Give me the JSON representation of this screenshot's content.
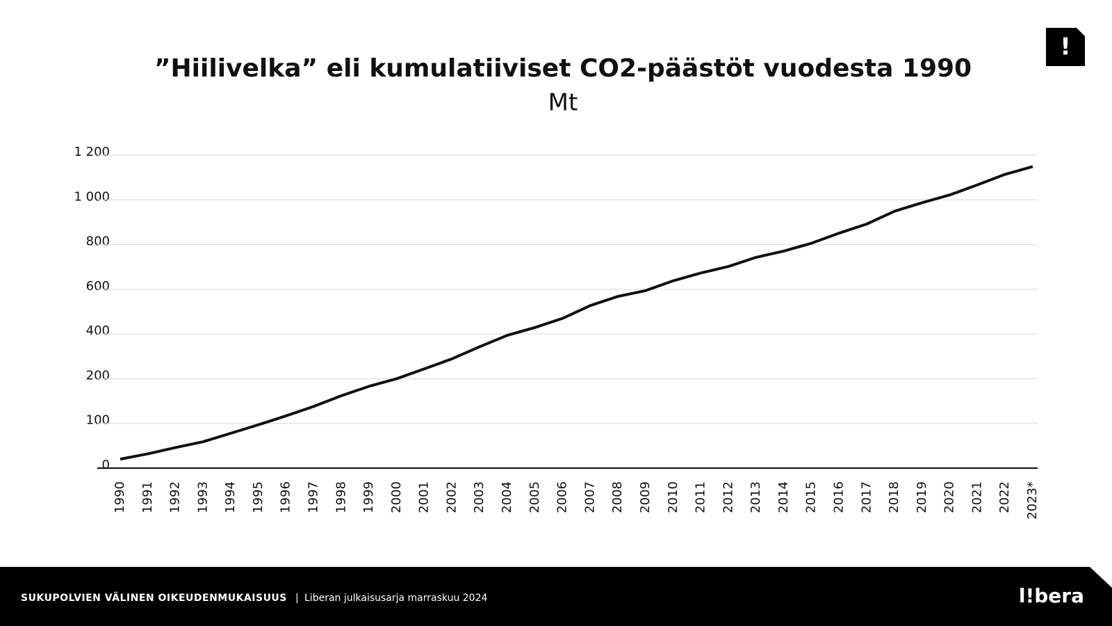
{
  "chart_data": {
    "type": "line",
    "title": "”Hiilivelka” eli kumulatiiviset CO2-päästöt vuodesta 1990",
    "subtitle": "Mt",
    "categories": [
      "1990",
      "1991",
      "1992",
      "1993",
      "1994",
      "1995",
      "1996",
      "1997",
      "1998",
      "1999",
      "2000",
      "2001",
      "2002",
      "2003",
      "2004",
      "2005",
      "2006",
      "2007",
      "2008",
      "2009",
      "2010",
      "2011",
      "2012",
      "2013",
      "2014",
      "2015",
      "2016",
      "2017",
      "2018",
      "2019",
      "2020",
      "2021",
      "2022",
      "2023*"
    ],
    "series": [
      {
        "name": "Kumulatiiviset CO2-päästöt",
        "color": "#111111",
        "values": [
          20,
          32,
          46,
          59,
          78,
          97,
          117,
          138,
          162,
          183,
          200,
          244,
          289,
          343,
          394,
          429,
          470,
          527,
          568,
          594,
          638,
          673,
          702,
          743,
          771,
          806,
          851,
          892,
          949,
          987,
          1022,
          1067,
          1114,
          1149
        ]
      }
    ],
    "ylim": [
      0,
      1200
    ],
    "yticks": [
      0,
      100,
      200,
      400,
      600,
      800,
      {
        "value": 1000,
        "label": "1 000"
      },
      {
        "value": 1200,
        "label": "1 200"
      }
    ],
    "grid": true
  },
  "badge": "!",
  "footer": {
    "left": "SUKUPOLVIEN VÄLINEN OIKEUDENMUKAISUUS",
    "separator": "|",
    "right": "Liberan julkaisusarja marraskuu 2024",
    "logo": "l!bera"
  }
}
